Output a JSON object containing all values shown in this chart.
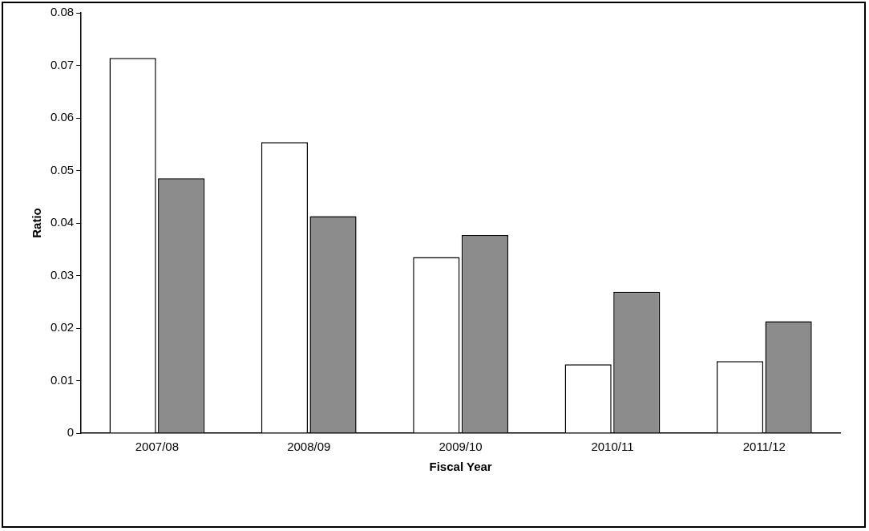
{
  "chart_data": {
    "type": "bar",
    "xlabel": "Fiscal Year",
    "ylabel": "Ratio",
    "categories": [
      "2007/08",
      "2008/09",
      "2009/10",
      "2010/11",
      "2011/12"
    ],
    "series": [
      {
        "color": "#ffffff",
        "values": [
          0.0714,
          0.0554,
          0.0335,
          0.0131,
          0.0137
        ]
      },
      {
        "color": "#8c8c8c",
        "values": [
          0.0485,
          0.0413,
          0.0377,
          0.0269,
          0.0213
        ]
      }
    ],
    "ylim": [
      0,
      0.08
    ],
    "yticks": [
      0,
      0.01,
      0.02,
      0.03,
      0.04,
      0.05,
      0.06,
      0.07,
      0.08
    ],
    "grid": false,
    "legend": false
  }
}
